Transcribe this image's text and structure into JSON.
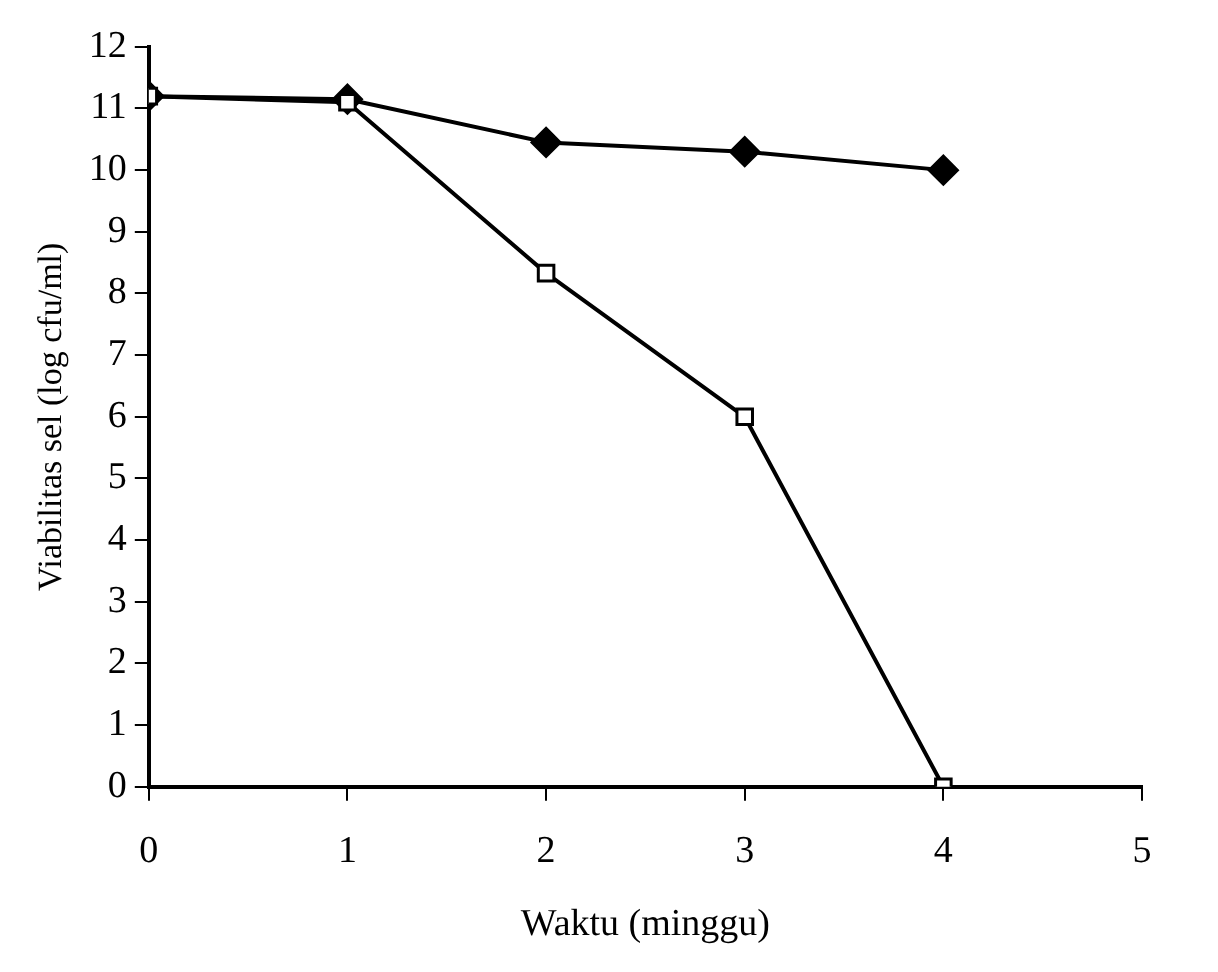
{
  "chart_data": {
    "type": "line",
    "xlabel": "Waktu (minggu)",
    "ylabel": "Viabilitas sel (log cfu/ml)",
    "x": [
      0,
      1,
      2,
      3,
      4
    ],
    "series": [
      {
        "color": "#000000",
        "marker": "diamond",
        "values": [
          11.2,
          11.15,
          10.45,
          10.3,
          10.0
        ]
      },
      {
        "color": "#000000",
        "marker": "square",
        "values": [
          11.2,
          11.1,
          8.33,
          6.0,
          0
        ]
      }
    ],
    "xlim": [
      0,
      5
    ],
    "xticks": [
      0,
      1,
      2,
      3,
      4,
      5
    ],
    "ylim": [
      0,
      12
    ],
    "yticks": [
      0,
      1,
      2,
      3,
      4,
      5,
      6,
      7,
      8,
      9,
      10,
      11,
      12
    ],
    "grid": false,
    "legend": false
  }
}
